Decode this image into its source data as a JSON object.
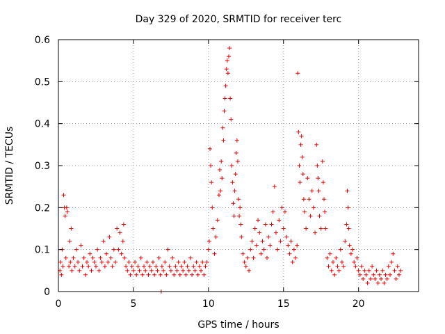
{
  "chart_data": {
    "type": "scatter",
    "title": "Day 329 of 2020, SRMTID for receiver terc",
    "xlabel": "GPS time / hours",
    "ylabel": "SRMTID / TECUs",
    "xlim": [
      0,
      24
    ],
    "ylim": [
      0,
      0.6
    ],
    "x_ticks": [
      0,
      5,
      10,
      15,
      20
    ],
    "y_ticks": [
      0,
      0.1,
      0.2,
      0.3,
      0.4,
      0.5,
      0.6
    ],
    "x_tick_labels": [
      "0",
      "5",
      "10",
      "15",
      "20"
    ],
    "y_tick_labels": [
      "0",
      "0.1",
      "0.2",
      "0.3",
      "0.4",
      "0.5",
      "0.6"
    ],
    "grid": true,
    "marker": "+",
    "series": [
      {
        "name": "SRMTID",
        "color": "#e00000",
        "points": [
          [
            0.1,
            0.05
          ],
          [
            0.15,
            0.07
          ],
          [
            0.2,
            0.04
          ],
          [
            0.25,
            0.1
          ],
          [
            0.3,
            0.06
          ],
          [
            0.35,
            0.23
          ],
          [
            0.4,
            0.2
          ],
          [
            0.45,
            0.18
          ],
          [
            0.5,
            0.08
          ],
          [
            0.55,
            0.2
          ],
          [
            0.6,
            0.19
          ],
          [
            0.7,
            0.06
          ],
          [
            0.75,
            0.12
          ],
          [
            0.8,
            0.07
          ],
          [
            0.85,
            0.15
          ],
          [
            0.9,
            0.05
          ],
          [
            1.0,
            0.08
          ],
          [
            1.1,
            0.06
          ],
          [
            1.2,
            0.1
          ],
          [
            1.3,
            0.07
          ],
          [
            1.4,
            0.05
          ],
          [
            1.5,
            0.11
          ],
          [
            1.6,
            0.06
          ],
          [
            1.7,
            0.08
          ],
          [
            1.8,
            0.04
          ],
          [
            1.9,
            0.07
          ],
          [
            2.0,
            0.06
          ],
          [
            2.1,
            0.09
          ],
          [
            2.2,
            0.05
          ],
          [
            2.3,
            0.08
          ],
          [
            2.4,
            0.07
          ],
          [
            2.5,
            0.06
          ],
          [
            2.6,
            0.1
          ],
          [
            2.7,
            0.05
          ],
          [
            2.8,
            0.08
          ],
          [
            2.9,
            0.07
          ],
          [
            3.0,
            0.12
          ],
          [
            3.1,
            0.06
          ],
          [
            3.2,
            0.09
          ],
          [
            3.3,
            0.07
          ],
          [
            3.4,
            0.13
          ],
          [
            3.5,
            0.08
          ],
          [
            3.6,
            0.06
          ],
          [
            3.7,
            0.1
          ],
          [
            3.8,
            0.07
          ],
          [
            3.9,
            0.15
          ],
          [
            4.0,
            0.1
          ],
          [
            4.1,
            0.14
          ],
          [
            4.2,
            0.09
          ],
          [
            4.3,
            0.12
          ],
          [
            4.35,
            0.16
          ],
          [
            4.4,
            0.08
          ],
          [
            4.5,
            0.06
          ],
          [
            4.6,
            0.05
          ],
          [
            4.7,
            0.07
          ],
          [
            4.8,
            0.04
          ],
          [
            4.9,
            0.06
          ],
          [
            5.0,
            0.05
          ],
          [
            5.1,
            0.07
          ],
          [
            5.2,
            0.04
          ],
          [
            5.3,
            0.06
          ],
          [
            5.4,
            0.05
          ],
          [
            5.5,
            0.08
          ],
          [
            5.6,
            0.04
          ],
          [
            5.7,
            0.06
          ],
          [
            5.8,
            0.05
          ],
          [
            5.9,
            0.07
          ],
          [
            6.0,
            0.04
          ],
          [
            6.1,
            0.06
          ],
          [
            6.2,
            0.05
          ],
          [
            6.3,
            0.07
          ],
          [
            6.4,
            0.04
          ],
          [
            6.5,
            0.06
          ],
          [
            6.6,
            0.05
          ],
          [
            6.7,
            0.08
          ],
          [
            6.8,
            0.04
          ],
          [
            6.85,
            0.0
          ],
          [
            6.9,
            0.06
          ],
          [
            7.0,
            0.05
          ],
          [
            7.1,
            0.07
          ],
          [
            7.2,
            0.04
          ],
          [
            7.3,
            0.1
          ],
          [
            7.4,
            0.06
          ],
          [
            7.5,
            0.05
          ],
          [
            7.6,
            0.08
          ],
          [
            7.7,
            0.04
          ],
          [
            7.8,
            0.06
          ],
          [
            7.9,
            0.05
          ],
          [
            8.0,
            0.07
          ],
          [
            8.1,
            0.04
          ],
          [
            8.2,
            0.06
          ],
          [
            8.3,
            0.05
          ],
          [
            8.4,
            0.07
          ],
          [
            8.5,
            0.04
          ],
          [
            8.6,
            0.06
          ],
          [
            8.7,
            0.05
          ],
          [
            8.8,
            0.08
          ],
          [
            8.9,
            0.04
          ],
          [
            9.0,
            0.06
          ],
          [
            9.1,
            0.05
          ],
          [
            9.2,
            0.07
          ],
          [
            9.3,
            0.04
          ],
          [
            9.4,
            0.06
          ],
          [
            9.5,
            0.05
          ],
          [
            9.6,
            0.07
          ],
          [
            9.7,
            0.04
          ],
          [
            9.8,
            0.06
          ],
          [
            9.9,
            0.07
          ],
          [
            10.0,
            0.1
          ],
          [
            10.05,
            0.12
          ],
          [
            10.1,
            0.34
          ],
          [
            10.15,
            0.3
          ],
          [
            10.2,
            0.26
          ],
          [
            10.25,
            0.2
          ],
          [
            10.3,
            0.15
          ],
          [
            10.4,
            0.09
          ],
          [
            10.5,
            0.13
          ],
          [
            10.6,
            0.17
          ],
          [
            10.7,
            0.23
          ],
          [
            10.75,
            0.29
          ],
          [
            10.8,
            0.24
          ],
          [
            10.85,
            0.31
          ],
          [
            10.9,
            0.27
          ],
          [
            10.95,
            0.39
          ],
          [
            11.0,
            0.36
          ],
          [
            11.05,
            0.43
          ],
          [
            11.1,
            0.46
          ],
          [
            11.15,
            0.49
          ],
          [
            11.2,
            0.53
          ],
          [
            11.25,
            0.55
          ],
          [
            11.3,
            0.52
          ],
          [
            11.35,
            0.56
          ],
          [
            11.4,
            0.58
          ],
          [
            11.45,
            0.46
          ],
          [
            11.5,
            0.41
          ],
          [
            11.55,
            0.3
          ],
          [
            11.6,
            0.26
          ],
          [
            11.65,
            0.21
          ],
          [
            11.7,
            0.18
          ],
          [
            11.75,
            0.24
          ],
          [
            11.8,
            0.28
          ],
          [
            11.85,
            0.33
          ],
          [
            11.9,
            0.36
          ],
          [
            11.95,
            0.31
          ],
          [
            12.0,
            0.22
          ],
          [
            12.05,
            0.18
          ],
          [
            12.1,
            0.2
          ],
          [
            12.15,
            0.16
          ],
          [
            12.2,
            0.13
          ],
          [
            12.3,
            0.09
          ],
          [
            12.4,
            0.07
          ],
          [
            12.5,
            0.06
          ],
          [
            12.6,
            0.08
          ],
          [
            12.7,
            0.05
          ],
          [
            12.8,
            0.1
          ],
          [
            12.9,
            0.12
          ],
          [
            13.0,
            0.08
          ],
          [
            13.1,
            0.15
          ],
          [
            13.2,
            0.11
          ],
          [
            13.3,
            0.17
          ],
          [
            13.4,
            0.14
          ],
          [
            13.5,
            0.09
          ],
          [
            13.6,
            0.12
          ],
          [
            13.7,
            0.1
          ],
          [
            13.8,
            0.16
          ],
          [
            13.9,
            0.08
          ],
          [
            14.0,
            0.13
          ],
          [
            14.1,
            0.11
          ],
          [
            14.2,
            0.16
          ],
          [
            14.3,
            0.19
          ],
          [
            14.4,
            0.25
          ],
          [
            14.5,
            0.14
          ],
          [
            14.6,
            0.1
          ],
          [
            14.7,
            0.17
          ],
          [
            14.8,
            0.12
          ],
          [
            14.9,
            0.2
          ],
          [
            15.0,
            0.15
          ],
          [
            15.1,
            0.19
          ],
          [
            15.2,
            0.13
          ],
          [
            15.3,
            0.11
          ],
          [
            15.4,
            0.09
          ],
          [
            15.5,
            0.12
          ],
          [
            15.6,
            0.07
          ],
          [
            15.7,
            0.1
          ],
          [
            15.8,
            0.08
          ],
          [
            15.9,
            0.11
          ],
          [
            15.95,
            0.52
          ],
          [
            16.0,
            0.38
          ],
          [
            16.05,
            0.3
          ],
          [
            16.1,
            0.26
          ],
          [
            16.15,
            0.35
          ],
          [
            16.2,
            0.37
          ],
          [
            16.25,
            0.32
          ],
          [
            16.3,
            0.28
          ],
          [
            16.35,
            0.22
          ],
          [
            16.4,
            0.19
          ],
          [
            16.5,
            0.15
          ],
          [
            16.6,
            0.27
          ],
          [
            16.7,
            0.22
          ],
          [
            16.8,
            0.18
          ],
          [
            16.9,
            0.24
          ],
          [
            17.0,
            0.2
          ],
          [
            17.1,
            0.14
          ],
          [
            17.2,
            0.35
          ],
          [
            17.25,
            0.3
          ],
          [
            17.3,
            0.27
          ],
          [
            17.35,
            0.24
          ],
          [
            17.4,
            0.18
          ],
          [
            17.5,
            0.15
          ],
          [
            17.6,
            0.31
          ],
          [
            17.65,
            0.26
          ],
          [
            17.7,
            0.22
          ],
          [
            17.75,
            0.19
          ],
          [
            17.8,
            0.15
          ],
          [
            17.9,
            0.08
          ],
          [
            18.0,
            0.06
          ],
          [
            18.1,
            0.09
          ],
          [
            18.2,
            0.05
          ],
          [
            18.3,
            0.07
          ],
          [
            18.4,
            0.04
          ],
          [
            18.5,
            0.08
          ],
          [
            18.6,
            0.06
          ],
          [
            18.7,
            0.05
          ],
          [
            18.8,
            0.1
          ],
          [
            18.9,
            0.07
          ],
          [
            19.0,
            0.06
          ],
          [
            19.1,
            0.12
          ],
          [
            19.2,
            0.16
          ],
          [
            19.25,
            0.24
          ],
          [
            19.3,
            0.2
          ],
          [
            19.35,
            0.15
          ],
          [
            19.4,
            0.11
          ],
          [
            19.5,
            0.09
          ],
          [
            19.6,
            0.1
          ],
          [
            19.7,
            0.07
          ],
          [
            19.8,
            0.06
          ],
          [
            19.9,
            0.08
          ],
          [
            20.0,
            0.05
          ],
          [
            20.1,
            0.04
          ],
          [
            20.2,
            0.06
          ],
          [
            20.3,
            0.03
          ],
          [
            20.4,
            0.05
          ],
          [
            20.5,
            0.04
          ],
          [
            20.6,
            0.02
          ],
          [
            20.7,
            0.05
          ],
          [
            20.8,
            0.03
          ],
          [
            20.9,
            0.06
          ],
          [
            21.0,
            0.04
          ],
          [
            21.1,
            0.03
          ],
          [
            21.2,
            0.05
          ],
          [
            21.3,
            0.02
          ],
          [
            21.4,
            0.04
          ],
          [
            21.5,
            0.03
          ],
          [
            21.6,
            0.05
          ],
          [
            21.7,
            0.02
          ],
          [
            21.8,
            0.04
          ],
          [
            21.9,
            0.03
          ],
          [
            22.0,
            0.06
          ],
          [
            22.1,
            0.04
          ],
          [
            22.2,
            0.07
          ],
          [
            22.3,
            0.09
          ],
          [
            22.4,
            0.05
          ],
          [
            22.5,
            0.03
          ],
          [
            22.6,
            0.06
          ],
          [
            22.7,
            0.04
          ],
          [
            22.8,
            0.05
          ]
        ]
      }
    ]
  }
}
